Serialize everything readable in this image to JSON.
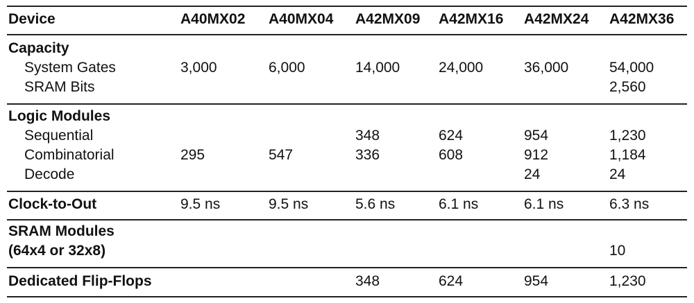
{
  "header": {
    "label": "Device",
    "devices": [
      "A40MX02",
      "A40MX04",
      "A42MX09",
      "A42MX16",
      "A42MX24",
      "A42MX36"
    ]
  },
  "sections": [
    {
      "title": "Capacity",
      "rows": [
        {
          "label": "System Gates",
          "values": [
            "3,000",
            "6,000",
            "14,000",
            "24,000",
            "36,000",
            "54,000"
          ]
        },
        {
          "label": "SRAM Bits",
          "values": [
            "",
            "",
            "",
            "",
            "",
            "2,560"
          ]
        }
      ]
    },
    {
      "title": "Logic Modules",
      "rows": [
        {
          "label": "Sequential",
          "values": [
            "",
            "",
            "348",
            "624",
            "954",
            "1,230"
          ]
        },
        {
          "label": "Combinatorial",
          "values": [
            "295",
            "547",
            "336",
            "608",
            "912",
            "1,184"
          ]
        },
        {
          "label": "Decode",
          "values": [
            "",
            "",
            "",
            "",
            "24",
            "24"
          ]
        }
      ]
    },
    {
      "title": "Clock-to-Out",
      "values": [
        "9.5 ns",
        "9.5 ns",
        "5.6 ns",
        "6.1 ns",
        "6.1 ns",
        "6.3 ns"
      ]
    },
    {
      "title": "SRAM Modules",
      "subtitle": "(64x4 or 32x8)",
      "values": [
        "",
        "",
        "",
        "",
        "",
        "10"
      ]
    },
    {
      "title": "Dedicated Flip-Flops",
      "values": [
        "",
        "",
        "348",
        "624",
        "954",
        "1,230"
      ]
    }
  ]
}
